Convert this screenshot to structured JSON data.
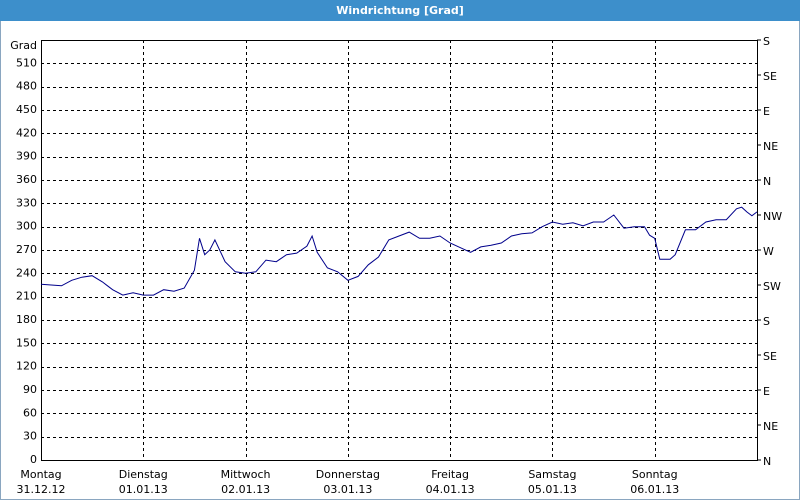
{
  "chart_data": {
    "type": "line",
    "title": "Windrichtung [Grad]",
    "ylabel": "Grad",
    "x": [
      0,
      0.1,
      0.2,
      0.3,
      0.4,
      0.5,
      0.6,
      0.65,
      0.7,
      0.8,
      0.9,
      1.0,
      1.1,
      1.2,
      1.3,
      1.4,
      1.5,
      1.55,
      1.6,
      1.65,
      1.7,
      1.8,
      1.9,
      2.0,
      2.1,
      2.2,
      2.3,
      2.4,
      2.5,
      2.6,
      2.65,
      2.7,
      2.8,
      2.9,
      3.0,
      3.1,
      3.2,
      3.3,
      3.4,
      3.5,
      3.6,
      3.7,
      3.8,
      3.9,
      4.0,
      4.1,
      4.2,
      4.3,
      4.4,
      4.5,
      4.6,
      4.7,
      4.8,
      4.9,
      5.0,
      5.1,
      5.2,
      5.3,
      5.4,
      5.5,
      5.6,
      5.7,
      5.8,
      5.9,
      5.95,
      6.0,
      6.05,
      6.15,
      6.2,
      6.3,
      6.4,
      6.5,
      6.6,
      6.7,
      6.8,
      6.85,
      6.9,
      6.95,
      7.0
    ],
    "series": [
      {
        "color": "#00008b",
        "values": [
          226,
          225,
          224,
          231,
          235,
          237,
          229,
          224,
          219,
          212,
          215,
          212,
          212,
          219,
          217,
          221,
          244,
          285,
          264,
          270,
          283,
          255,
          242,
          240,
          242,
          257,
          255,
          264,
          266,
          275,
          288,
          267,
          247,
          242,
          231,
          236,
          251,
          261,
          283,
          288,
          293,
          285,
          285,
          288,
          279,
          273,
          267,
          274,
          276,
          279,
          288,
          291,
          292,
          300,
          306,
          303,
          305,
          301,
          306,
          306,
          315,
          298,
          300,
          300,
          289,
          285,
          258,
          258,
          264,
          296,
          296,
          306,
          309,
          309,
          323,
          325,
          319,
          314,
          319
        ]
      }
    ],
    "xlim": [
      0,
      7
    ],
    "xticks": [
      {
        "value": 0,
        "label": "Montag"
      },
      {
        "value": 1,
        "label": "Dienstag"
      },
      {
        "value": 2,
        "label": "Mittwoch"
      },
      {
        "value": 3,
        "label": "Donnerstag"
      },
      {
        "value": 4,
        "label": "Freitag"
      },
      {
        "value": 5,
        "label": "Samstag"
      },
      {
        "value": 6,
        "label": "Sonntag"
      }
    ],
    "xtick_dates": [
      "31.12.12",
      "01.01.13",
      "02.01.13",
      "03.01.13",
      "04.01.13",
      "05.01.13",
      "06.01.13"
    ],
    "ylim": [
      0,
      540
    ],
    "yticks": [
      0,
      30,
      60,
      90,
      120,
      150,
      180,
      210,
      240,
      270,
      300,
      330,
      360,
      390,
      420,
      450,
      480,
      510
    ],
    "y2lim": [
      0,
      540
    ],
    "y2ticks": [
      {
        "value": 0,
        "label": "N"
      },
      {
        "value": 45,
        "label": "NE"
      },
      {
        "value": 90,
        "label": "E"
      },
      {
        "value": 135,
        "label": "SE"
      },
      {
        "value": 180,
        "label": "S"
      },
      {
        "value": 225,
        "label": "SW"
      },
      {
        "value": 270,
        "label": "W"
      },
      {
        "value": 315,
        "label": "NW"
      },
      {
        "value": 360,
        "label": "N"
      },
      {
        "value": 405,
        "label": "NE"
      },
      {
        "value": 450,
        "label": "E"
      },
      {
        "value": 495,
        "label": "SE"
      },
      {
        "value": 540,
        "label": "S"
      }
    ],
    "grid": true
  }
}
